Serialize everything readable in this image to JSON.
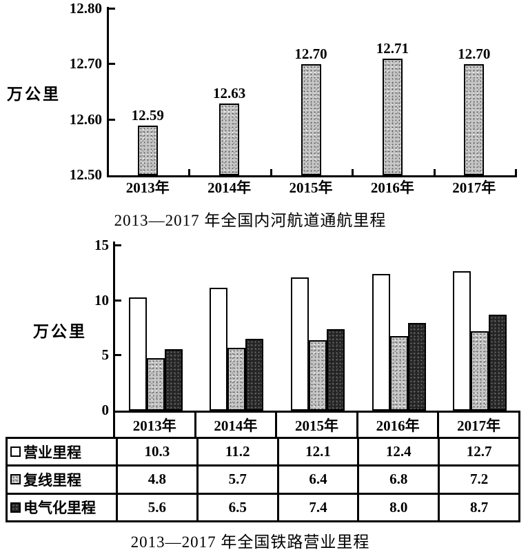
{
  "chart_data": [
    {
      "type": "bar",
      "title": "2013—2017 年全国内河航道通航里程",
      "ylabel": "万公里",
      "categories": [
        "2013年",
        "2014年",
        "2015年",
        "2016年",
        "2017年"
      ],
      "values": [
        12.59,
        12.63,
        12.7,
        12.71,
        12.7
      ],
      "value_labels": [
        "12.59",
        "12.63",
        "12.70",
        "12.71",
        "12.70"
      ],
      "ylim": [
        12.5,
        12.8
      ],
      "yticks": [
        12.5,
        12.6,
        12.7,
        12.8
      ],
      "ytick_labels": [
        "12.50",
        "12.60",
        "12.70",
        "12.80"
      ],
      "grid": false,
      "legend": null,
      "bar_style": "light-stipple"
    },
    {
      "type": "bar",
      "title": "2013—2017 年全国铁路营业里程",
      "ylabel": "万公里",
      "categories": [
        "2013年",
        "2014年",
        "2015年",
        "2016年",
        "2017年"
      ],
      "ylim": [
        0,
        15
      ],
      "yticks": [
        0,
        5,
        10,
        15
      ],
      "ytick_labels": [
        "0",
        "5",
        "10",
        "15"
      ],
      "grid": false,
      "legend_position": "table-left",
      "series": [
        {
          "key": "operating-mileage",
          "name": "营业里程",
          "style": "white",
          "values": [
            10.3,
            11.2,
            12.1,
            12.4,
            12.7
          ],
          "value_labels": [
            "10.3",
            "11.2",
            "12.1",
            "12.4",
            "12.7"
          ]
        },
        {
          "key": "double-track-mileage",
          "name": "复线里程",
          "style": "light-stipple",
          "values": [
            4.8,
            5.7,
            6.4,
            6.8,
            7.2
          ],
          "value_labels": [
            "4.8",
            "5.7",
            "6.4",
            "6.8",
            "7.2"
          ]
        },
        {
          "key": "electrified-mileage",
          "name": "电气化里程",
          "style": "dark-stipple",
          "values": [
            5.6,
            6.5,
            7.4,
            8.0,
            8.7
          ],
          "value_labels": [
            "5.6",
            "6.5",
            "7.4",
            "8.0",
            "8.7"
          ]
        }
      ]
    }
  ]
}
